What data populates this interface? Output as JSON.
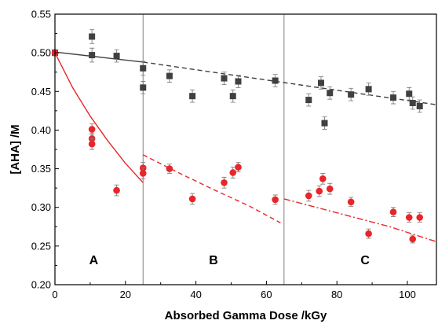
{
  "chart_data": {
    "type": "scatter",
    "xlabel": "Absorbed Gamma Dose /kGy",
    "ylabel": "[AHA] /M",
    "xlim": [
      0,
      108
    ],
    "ylim": [
      0.2,
      0.55
    ],
    "x_ticks": [
      "0",
      "20",
      "40",
      "60",
      "80",
      "100"
    ],
    "y_ticks": [
      "0.20",
      "0.25",
      "0.30",
      "0.35",
      "0.40",
      "0.45",
      "0.50",
      "0.55"
    ],
    "regions": [
      {
        "label": "A",
        "x": 11
      },
      {
        "label": "B",
        "x": 45
      },
      {
        "label": "C",
        "x": 88
      }
    ],
    "region_boundaries": [
      25,
      65
    ],
    "colors": {
      "series1": "#404040",
      "series2": "#e8262a",
      "boundary": "#808080"
    },
    "series": [
      {
        "marker": "square",
        "color": "#404040",
        "points": [
          {
            "x": 0,
            "y": 0.5,
            "err": 0.004
          },
          {
            "x": 10.5,
            "y": 0.521,
            "err": 0.009
          },
          {
            "x": 10.5,
            "y": 0.497,
            "err": 0.009
          },
          {
            "x": 17.5,
            "y": 0.496,
            "err": 0.008
          },
          {
            "x": 25,
            "y": 0.48,
            "err": 0.009
          },
          {
            "x": 25,
            "y": 0.455,
            "err": 0.008
          },
          {
            "x": 32.5,
            "y": 0.47,
            "err": 0.008
          },
          {
            "x": 39,
            "y": 0.444,
            "err": 0.008
          },
          {
            "x": 48,
            "y": 0.467,
            "err": 0.008
          },
          {
            "x": 50.5,
            "y": 0.444,
            "err": 0.008
          },
          {
            "x": 52,
            "y": 0.463,
            "err": 0.008
          },
          {
            "x": 62.5,
            "y": 0.464,
            "err": 0.008
          },
          {
            "x": 72,
            "y": 0.439,
            "err": 0.008
          },
          {
            "x": 75.5,
            "y": 0.461,
            "err": 0.008
          },
          {
            "x": 76.5,
            "y": 0.409,
            "err": 0.008
          },
          {
            "x": 78,
            "y": 0.448,
            "err": 0.008
          },
          {
            "x": 84,
            "y": 0.446,
            "err": 0.008
          },
          {
            "x": 89,
            "y": 0.453,
            "err": 0.008
          },
          {
            "x": 96,
            "y": 0.442,
            "err": 0.008
          },
          {
            "x": 100.5,
            "y": 0.447,
            "err": 0.008
          },
          {
            "x": 101.5,
            "y": 0.435,
            "err": 0.008
          },
          {
            "x": 103.5,
            "y": 0.431,
            "err": 0.008
          }
        ],
        "fit_segments": [
          {
            "style": "solid",
            "from": [
              0,
              0.501
            ],
            "to": [
              25,
              0.488
            ]
          },
          {
            "style": "dashed",
            "from": [
              25,
              0.488
            ],
            "to": [
              108,
              0.433
            ]
          }
        ]
      },
      {
        "marker": "circle",
        "color": "#e8262a",
        "points": [
          {
            "x": 0,
            "y": 0.5,
            "err": 0.004
          },
          {
            "x": 10.5,
            "y": 0.401,
            "err": 0.007
          },
          {
            "x": 10.5,
            "y": 0.389,
            "err": 0.007
          },
          {
            "x": 10.5,
            "y": 0.382,
            "err": 0.007
          },
          {
            "x": 17.5,
            "y": 0.322,
            "err": 0.007
          },
          {
            "x": 25,
            "y": 0.351,
            "err": 0.007
          },
          {
            "x": 25,
            "y": 0.344,
            "err": 0.007
          },
          {
            "x": 32.5,
            "y": 0.35,
            "err": 0.006
          },
          {
            "x": 39,
            "y": 0.311,
            "err": 0.007
          },
          {
            "x": 48,
            "y": 0.332,
            "err": 0.007
          },
          {
            "x": 50.5,
            "y": 0.345,
            "err": 0.007
          },
          {
            "x": 52,
            "y": 0.352,
            "err": 0.006
          },
          {
            "x": 62.5,
            "y": 0.31,
            "err": 0.006
          },
          {
            "x": 72,
            "y": 0.315,
            "err": 0.007
          },
          {
            "x": 75,
            "y": 0.321,
            "err": 0.007
          },
          {
            "x": 76,
            "y": 0.337,
            "err": 0.007
          },
          {
            "x": 78,
            "y": 0.324,
            "err": 0.007
          },
          {
            "x": 84,
            "y": 0.307,
            "err": 0.006
          },
          {
            "x": 89,
            "y": 0.266,
            "err": 0.006
          },
          {
            "x": 96,
            "y": 0.294,
            "err": 0.006
          },
          {
            "x": 100.5,
            "y": 0.287,
            "err": 0.006
          },
          {
            "x": 101.5,
            "y": 0.259,
            "err": 0.005
          },
          {
            "x": 103.5,
            "y": 0.287,
            "err": 0.006
          }
        ],
        "fit_segments": [
          {
            "style": "solid",
            "points": [
              [
                0,
                0.5
              ],
              [
                5,
                0.455
              ],
              [
                10,
                0.418
              ],
              [
                15,
                0.386
              ],
              [
                20,
                0.357
              ],
              [
                25,
                0.332
              ]
            ]
          },
          {
            "style": "dashed",
            "points": [
              [
                25,
                0.368
              ],
              [
                35,
                0.345
              ],
              [
                45,
                0.323
              ],
              [
                55,
                0.302
              ],
              [
                64,
                0.28
              ]
            ]
          },
          {
            "style": "dashdot",
            "points": [
              [
                65,
                0.311
              ],
              [
                75,
                0.299
              ],
              [
                85,
                0.287
              ],
              [
                95,
                0.275
              ],
              [
                108,
                0.256
              ]
            ]
          }
        ]
      }
    ]
  }
}
